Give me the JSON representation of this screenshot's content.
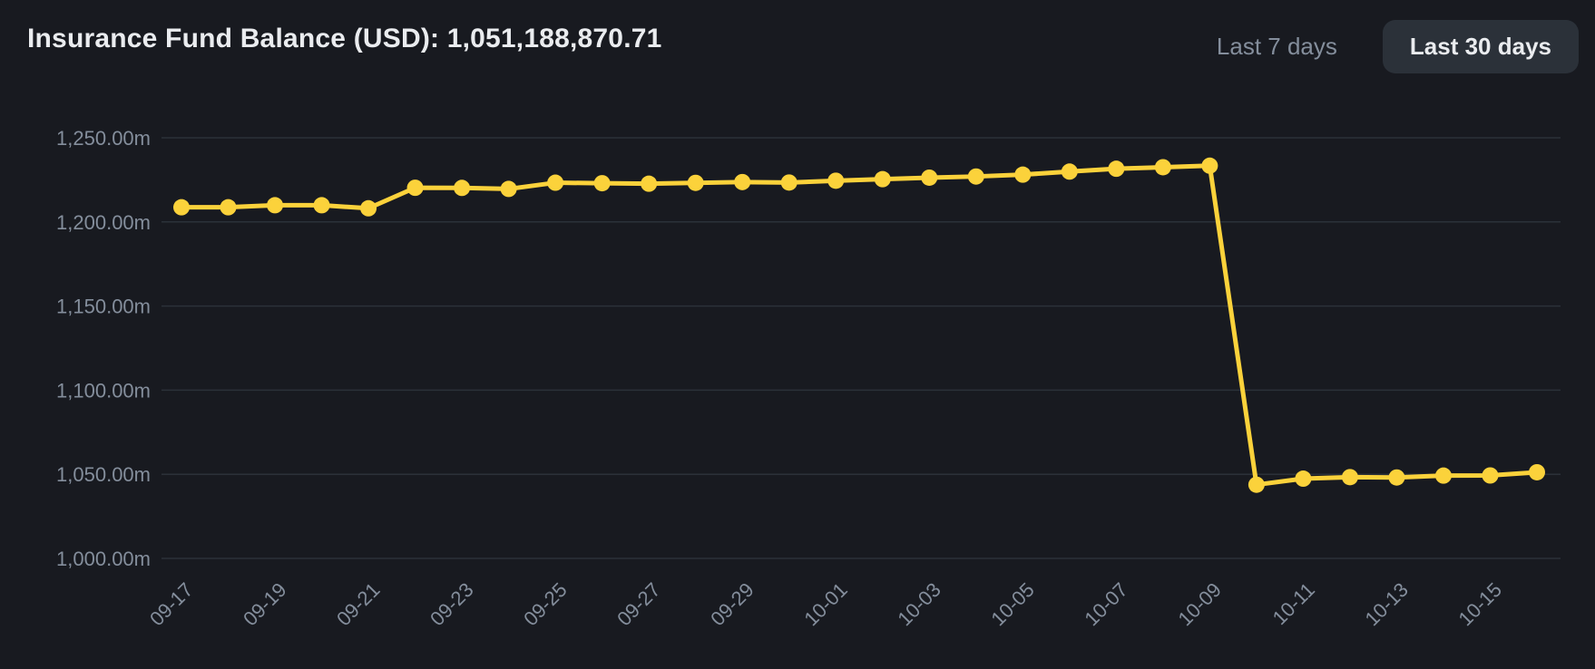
{
  "header": {
    "title": "Insurance Fund Balance (USD): 1,051,188,870.71"
  },
  "controls": {
    "range_buttons": [
      {
        "label": "Last 7 days",
        "active": false
      },
      {
        "label": "Last 30 days",
        "active": true
      }
    ]
  },
  "colors": {
    "background": "#181A20",
    "line": "#FBD23B",
    "marker": "#FBD23B",
    "grid": "#2B3139",
    "axis_label": "#848E9C",
    "title_text": "#EAECEF",
    "active_button_bg": "#2B3139",
    "active_button_text": "#EAECEF",
    "inactive_button_text": "#848E9C"
  },
  "chart_data": {
    "type": "line",
    "title": "Insurance Fund Balance (USD): 1,051,188,870.71",
    "series_name": "Insurance Fund Balance",
    "unit": "millions USD (m)",
    "x": [
      "09-17",
      "09-18",
      "09-19",
      "09-20",
      "09-21",
      "09-22",
      "09-23",
      "09-24",
      "09-25",
      "09-26",
      "09-27",
      "09-28",
      "09-29",
      "09-30",
      "10-01",
      "10-02",
      "10-03",
      "10-04",
      "10-05",
      "10-06",
      "10-07",
      "10-08",
      "10-09",
      "10-10",
      "10-11",
      "10-12",
      "10-13",
      "10-14",
      "10-15",
      "10-16"
    ],
    "values": [
      1208.7,
      1208.7,
      1209.9,
      1209.9,
      1208.1,
      1220.3,
      1220.2,
      1219.6,
      1223.3,
      1223.0,
      1222.7,
      1223.2,
      1223.7,
      1223.4,
      1224.5,
      1225.4,
      1226.3,
      1227.0,
      1228.1,
      1229.9,
      1231.6,
      1232.5,
      1233.4,
      1043.8,
      1047.4,
      1048.3,
      1048.1,
      1049.2,
      1049.3,
      1051.19
    ],
    "x_tick_labels": [
      "09-17",
      "09-19",
      "09-21",
      "09-23",
      "09-25",
      "09-27",
      "09-29",
      "10-01",
      "10-03",
      "10-05",
      "10-07",
      "10-09",
      "10-11",
      "10-13",
      "10-15"
    ],
    "y_ticks": [
      1000,
      1050,
      1100,
      1150,
      1200,
      1250
    ],
    "y_tick_labels": [
      "1,000.00m",
      "1,050.00m",
      "1,100.00m",
      "1,150.00m",
      "1,200.00m",
      "1,250.00m"
    ],
    "ylim": [
      1000,
      1250
    ],
    "grid": "horizontal-only",
    "legend": "none",
    "point_markers": true,
    "x_label_rotation_deg": -45
  }
}
